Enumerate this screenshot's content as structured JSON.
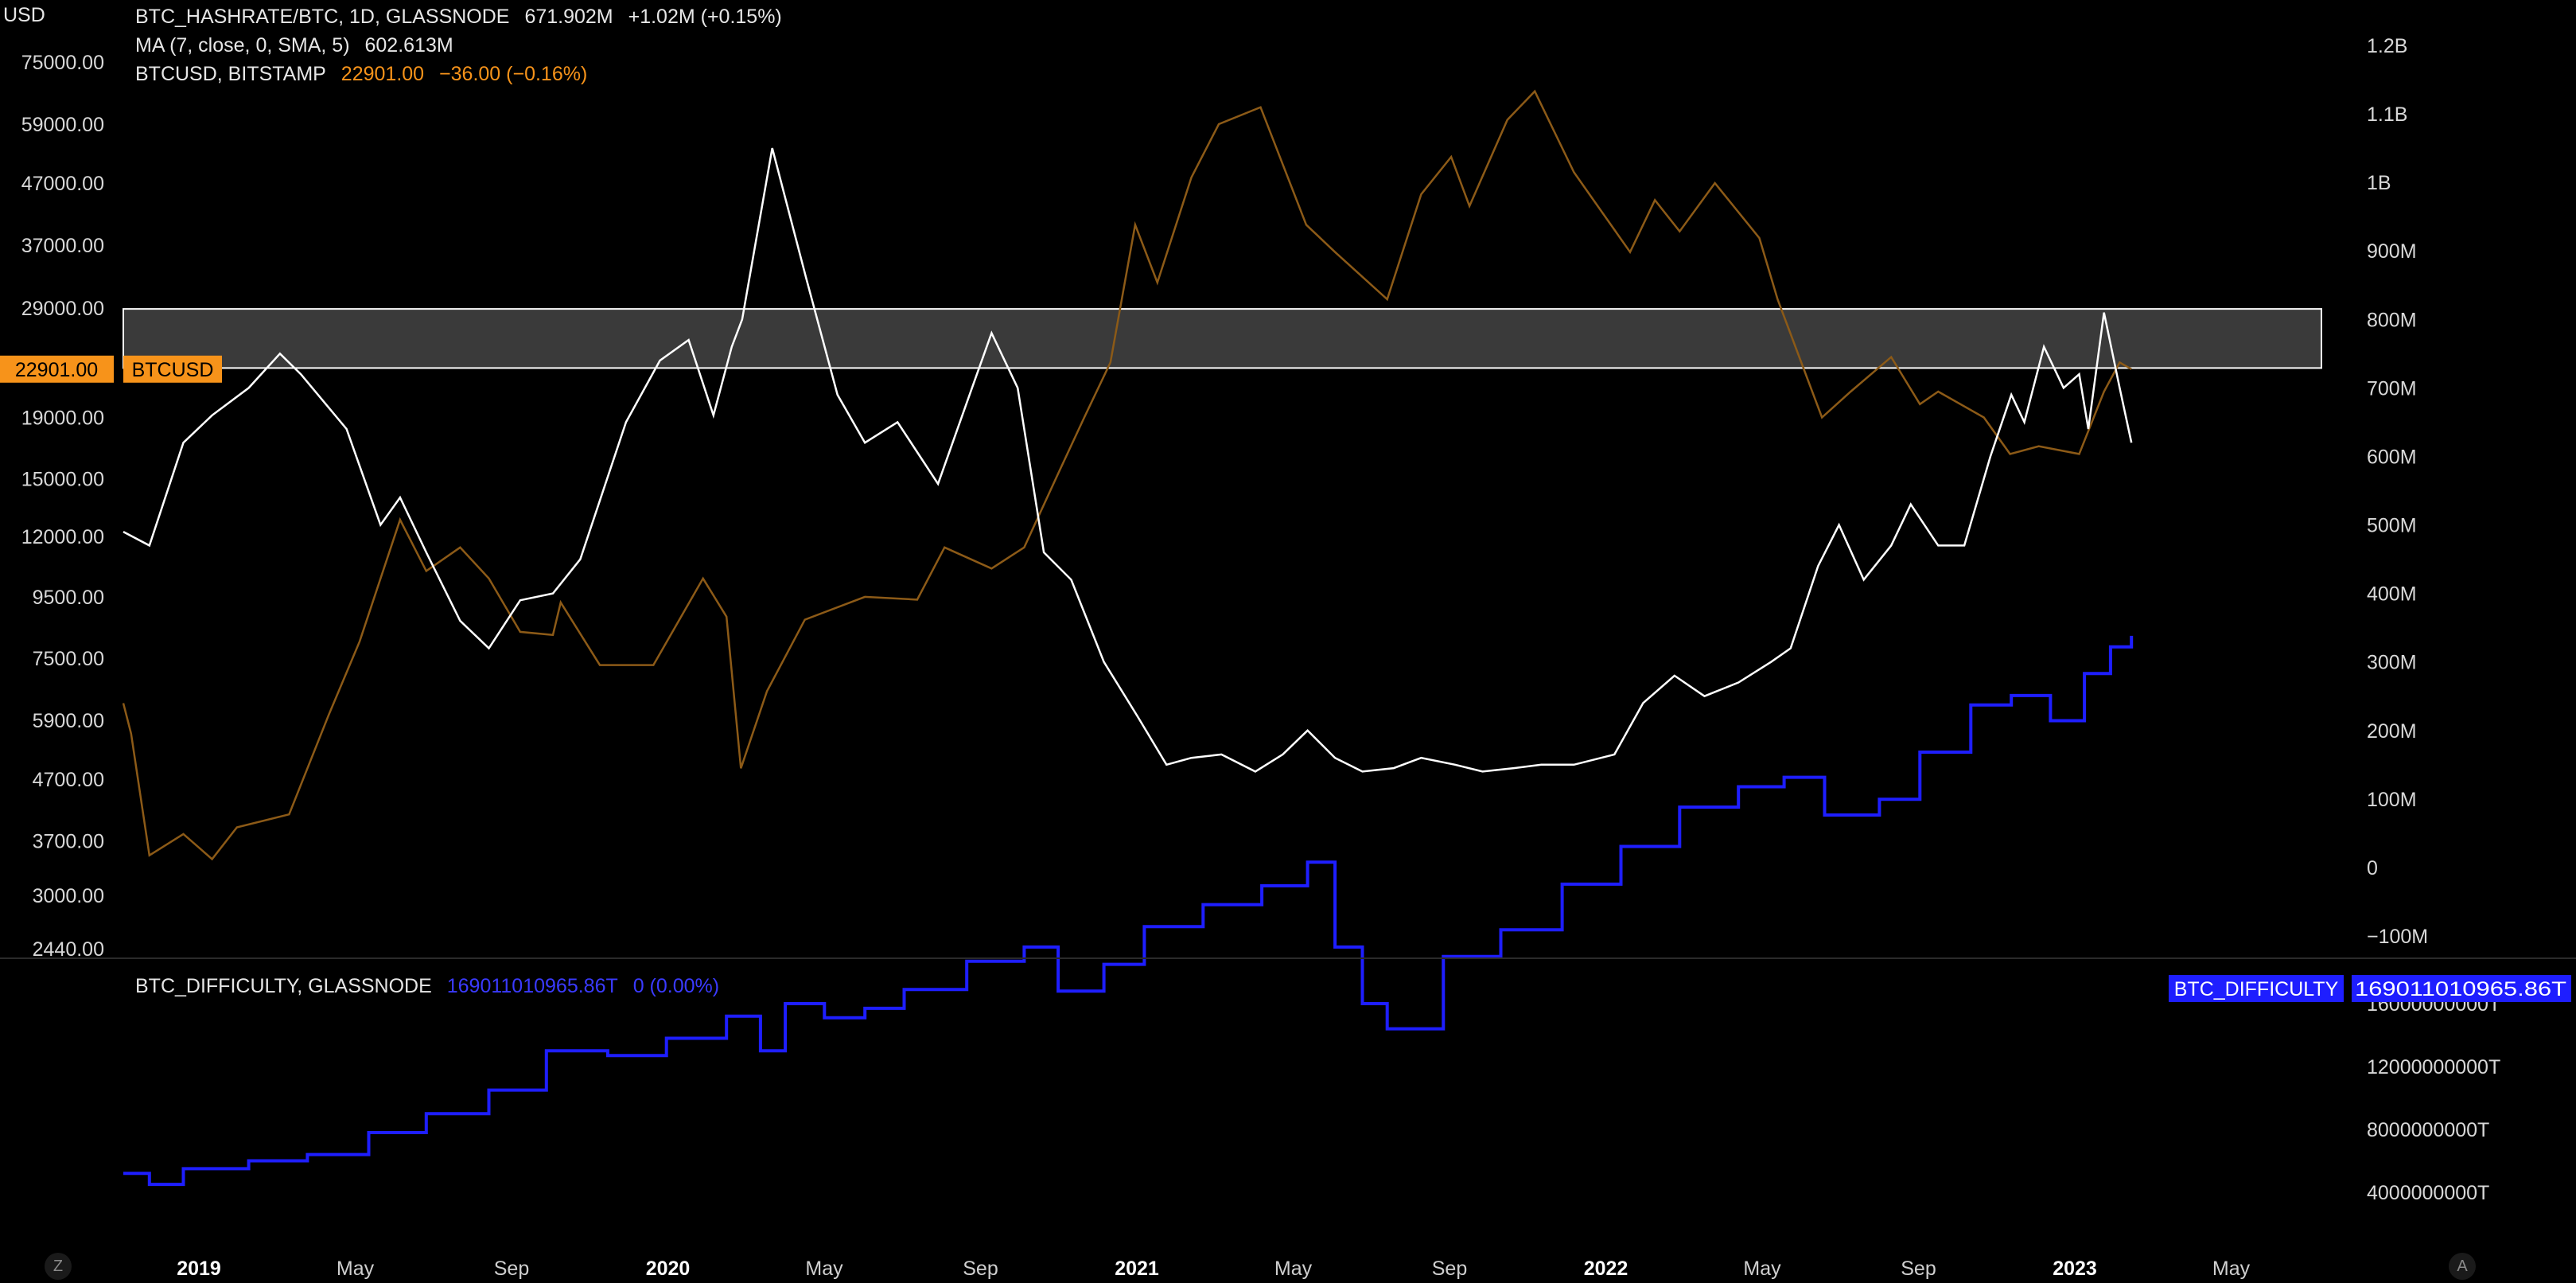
{
  "top_left_unit": "USD",
  "legend": {
    "hashrate": {
      "title": "BTC_HASHRATE/BTC, 1D, GLASSNODE",
      "value": "671.902M",
      "change": "+1.02M (+0.15%)"
    },
    "ma": {
      "title": "MA (7, close, 0, SMA, 5)",
      "value": "602.613M"
    },
    "btcusd": {
      "title": "BTCUSD, BITSTAMP",
      "value": "22901.00",
      "change": "−36.00 (−0.16%)"
    },
    "difficulty": {
      "title": "BTC_DIFFICULTY, GLASSNODE",
      "value": "16901101096​5.86T",
      "change": "0 (0.00%)"
    }
  },
  "price_tag": {
    "value": "22901.00",
    "label": "BTCUSD"
  },
  "difficulty_tag": {
    "label": "BTC_DIFFICULTY",
    "value": "16901101096​5.86T"
  },
  "corner_buttons": {
    "left": "Z",
    "right": "A"
  },
  "colors": {
    "background": "#000000",
    "hashrate_line": "#ffffff",
    "btcusd_line": "#8c5a17",
    "btcusd_tag": "#f7931a",
    "difficulty_line": "#1e1eff",
    "difficulty_tag": "#1e1eff",
    "zone_fill": "#3a3a3a",
    "zone_border": "#ffffff"
  },
  "chart_data": [
    {
      "type": "line",
      "title": "BTC_HASHRATE/BTC, 1D, GLASSNODE",
      "x_ticks": [
        "2019",
        "May",
        "Sep",
        "2020",
        "May",
        "Sep",
        "2021",
        "May",
        "Sep",
        "2022",
        "May",
        "Sep",
        "2023",
        "May"
      ],
      "left_axis": {
        "unit": "USD",
        "scale": "log",
        "ticks": [
          "75000.00",
          "59000.00",
          "47000.00",
          "37000.00",
          "29000.00",
          "19000.00",
          "15000.00",
          "12000.00",
          "9500.00",
          "7500.00",
          "5900.00",
          "4700.00",
          "3700.00",
          "3000.00",
          "2440.00"
        ]
      },
      "right_axis": {
        "ticks": [
          "1.2B",
          "1.1B",
          "1B",
          "900M",
          "800M",
          "700M",
          "600M",
          "500M",
          "400M",
          "300M",
          "200M",
          "100M",
          "0",
          "−100M"
        ]
      },
      "highlight_zone": {
        "y_low": 23000,
        "y_high": 28900,
        "unit": "USD"
      },
      "series": [
        {
          "name": "BTC_HASHRATE/BTC",
          "axis": "right",
          "x": [
            "2018-11-25",
            "2018-12-15",
            "2019-01-10",
            "2019-02-01",
            "2019-03-01",
            "2019-03-25",
            "2019-04-10",
            "2019-05-15",
            "2019-06-10",
            "2019-06-25",
            "2019-07-15",
            "2019-08-10",
            "2019-09-01",
            "2019-09-25",
            "2019-10-20",
            "2019-11-10",
            "2019-12-15",
            "2020-01-10",
            "2020-02-01",
            "2020-02-20",
            "2020-03-05",
            "2020-03-13",
            "2020-04-05",
            "2020-05-01",
            "2020-05-25",
            "2020-06-15",
            "2020-07-10",
            "2020-08-10",
            "2020-09-05",
            "2020-09-20",
            "2020-10-10",
            "2020-10-30",
            "2020-11-20",
            "2020-12-15",
            "2021-01-10",
            "2021-02-01",
            "2021-02-20",
            "2021-03-15",
            "2021-04-10",
            "2021-05-01",
            "2021-05-20",
            "2021-06-10",
            "2021-07-01",
            "2021-07-25",
            "2021-08-15",
            "2021-09-10",
            "2021-10-01",
            "2021-10-25",
            "2021-11-15",
            "2021-12-10",
            "2022-01-10",
            "2022-02-01",
            "2022-02-25",
            "2022-03-20",
            "2022-04-15",
            "2022-05-10",
            "2022-05-25",
            "2022-06-15",
            "2022-07-01",
            "2022-07-20",
            "2022-08-10",
            "2022-08-25",
            "2022-09-15",
            "2022-10-05",
            "2022-10-25",
            "2022-11-10",
            "2022-11-20",
            "2022-12-05",
            "2022-12-20",
            "2023-01-01",
            "2023-01-08",
            "2023-01-20",
            "2023-02-01",
            "2023-02-10"
          ],
          "values": [
            490,
            470,
            620,
            660,
            700,
            750,
            720,
            640,
            500,
            540,
            460,
            360,
            320,
            390,
            400,
            450,
            650,
            740,
            770,
            660,
            760,
            800,
            1050,
            860,
            690,
            620,
            650,
            560,
            700,
            780,
            700,
            460,
            420,
            300,
            220,
            150,
            160,
            165,
            140,
            165,
            200,
            160,
            140,
            145,
            160,
            150,
            140,
            145,
            150,
            150,
            165,
            240,
            280,
            250,
            270,
            300,
            320,
            440,
            500,
            420,
            470,
            530,
            470,
            470,
            600,
            690,
            650,
            760,
            700,
            720,
            640,
            810,
            700,
            620
          ],
          "label": "671.902M"
        },
        {
          "name": "BTCUSD",
          "axis": "left",
          "x": [
            "2018-11-25",
            "2018-12-01",
            "2018-12-15",
            "2019-01-10",
            "2019-02-01",
            "2019-02-20",
            "2019-04-01",
            "2019-05-01",
            "2019-05-25",
            "2019-06-25",
            "2019-07-15",
            "2019-08-10",
            "2019-09-01",
            "2019-09-25",
            "2019-10-20",
            "2019-10-26",
            "2019-11-25",
            "2020-01-05",
            "2020-02-12",
            "2020-03-01",
            "2020-03-12",
            "2020-04-01",
            "2020-04-30",
            "2020-06-15",
            "2020-07-25",
            "2020-08-15",
            "2020-09-20",
            "2020-10-15",
            "2020-11-10",
            "2020-11-30",
            "2020-12-20",
            "2021-01-08",
            "2021-01-25",
            "2021-02-20",
            "2021-03-13",
            "2021-04-14",
            "2021-05-19",
            "2021-06-10",
            "2021-07-20",
            "2021-08-15",
            "2021-09-07",
            "2021-09-21",
            "2021-10-20",
            "2021-11-10",
            "2021-12-10",
            "2022-01-22",
            "2022-02-10",
            "2022-03-01",
            "2022-03-28",
            "2022-05-01",
            "2022-05-15",
            "2022-06-18",
            "2022-07-10",
            "2022-08-10",
            "2022-09-01",
            "2022-09-15",
            "2022-10-20",
            "2022-11-09",
            "2022-12-01",
            "2023-01-01",
            "2023-01-20",
            "2023-02-01",
            "2023-02-10"
          ],
          "values": [
            6300,
            5600,
            3500,
            3800,
            3450,
            3900,
            4100,
            6000,
            8000,
            12800,
            10500,
            11500,
            10200,
            8300,
            8200,
            9300,
            7300,
            7300,
            10200,
            8800,
            4900,
            6600,
            8700,
            9500,
            9400,
            11500,
            10600,
            11500,
            15300,
            19000,
            23500,
            40000,
            32000,
            48000,
            59000,
            63000,
            40000,
            36000,
            30000,
            45000,
            52000,
            43000,
            60000,
            67000,
            49000,
            36000,
            44000,
            39000,
            47000,
            38000,
            30000,
            19000,
            21000,
            24000,
            20000,
            21000,
            19000,
            16500,
            17000,
            16500,
            21000,
            23500,
            22901
          ],
          "label": "22901.00"
        }
      ]
    },
    {
      "type": "line",
      "title": "BTC_DIFFICULTY, GLASSNODE",
      "right_axis": {
        "ticks": [
          "16000000000T",
          "12000000000T",
          "8000000000T",
          "4000000000T"
        ]
      },
      "series": [
        {
          "name": "BTC_DIFFICULTY",
          "step": true,
          "x": [
            "2018-11-25",
            "2018-12-15",
            "2019-01-10",
            "2019-03-01",
            "2019-04-15",
            "2019-06-01",
            "2019-07-15",
            "2019-09-01",
            "2019-10-15",
            "2019-12-01",
            "2020-01-15",
            "2020-03-01",
            "2020-03-27",
            "2020-04-15",
            "2020-05-15",
            "2020-06-15",
            "2020-07-15",
            "2020-09-01",
            "2020-10-15",
            "2020-11-10",
            "2020-12-15",
            "2021-01-15",
            "2021-03-01",
            "2021-04-15",
            "2021-05-20",
            "2021-06-10",
            "2021-07-01",
            "2021-07-20",
            "2021-09-01",
            "2021-10-15",
            "2021-12-01",
            "2022-01-15",
            "2022-03-01",
            "2022-04-15",
            "2022-05-20",
            "2022-06-20",
            "2022-08-01",
            "2022-09-01",
            "2022-10-10",
            "2022-11-10",
            "2022-12-10",
            "2023-01-05",
            "2023-01-25",
            "2023-02-10"
          ],
          "values": [
            5200,
            4500,
            5500,
            6000,
            6400,
            7800,
            9000,
            10500,
            13000,
            12700,
            13800,
            15200,
            13000,
            16000,
            15100,
            15700,
            16900,
            18700,
            19600,
            16800,
            18500,
            20900,
            22300,
            23500,
            25000,
            19600,
            16000,
            14400,
            19000,
            20700,
            23600,
            26000,
            28500,
            29800,
            30400,
            28000,
            29000,
            32000,
            35000,
            35600,
            34000,
            37000,
            38700,
            39400
          ],
          "unit": "billion T"
        }
      ]
    }
  ]
}
